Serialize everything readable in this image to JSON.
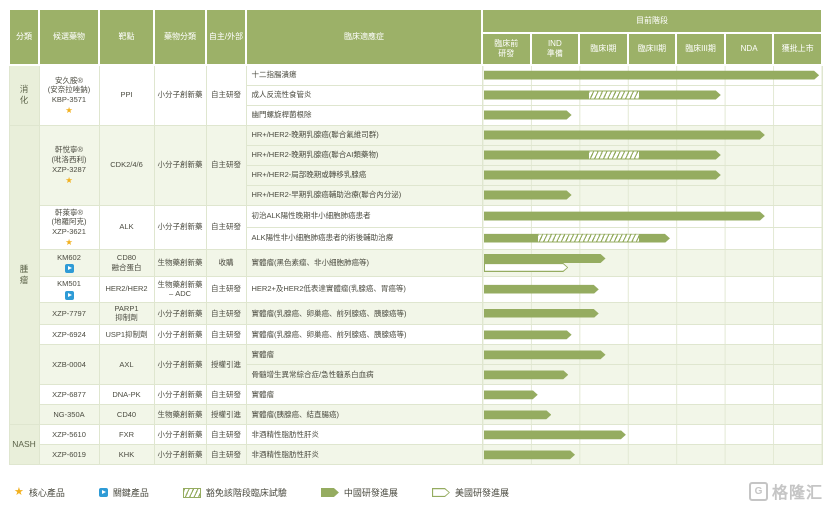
{
  "header": {
    "category": "分類",
    "candidate": "候選藥物",
    "target": "靶點",
    "drug_class": "藥物分類",
    "source": "自主/外部",
    "indication": "臨床適應症",
    "stage_group": "目前階段"
  },
  "colors": {
    "header_green": "#9cb168",
    "bar_green": "#95ac60",
    "row_tint": "#f2f6e8",
    "category_bg": "#e9efda",
    "border": "#dfe6cf",
    "grid_line": "#e3e9d4",
    "star_gold": "#f2b01e",
    "key_blue": "#2e9bd6",
    "text": "#4b4b40",
    "watermark_gray": "#c5c5c5"
  },
  "chart_data": {
    "type": "gantt",
    "title": "目前階段",
    "stages": [
      "臨床前\n研發",
      "IND\n準備",
      "臨床I期",
      "臨床II期",
      "臨床III期",
      "NDA",
      "獲批上市"
    ],
    "axis_note": "segment 'to' values are percent of stage axis width (0-100, 7 equal stage columns)",
    "categories": [
      {
        "label": "消\n化",
        "drugs": [
          {
            "name_lines": [
              "安久胺®",
              "(安奈拉唑鈉)",
              "KBP-3571"
            ],
            "marker": "star",
            "target": "PPI",
            "drug_class": "小分子創新藥",
            "source": "自主研發",
            "indications": [
              {
                "text": "十二指腸潰瘍",
                "segments": [
                  {
                    "type": "solid",
                    "to": 99
                  }
                ]
              },
              {
                "text": "成人反流性食管炎",
                "segments": [
                  {
                    "type": "solid",
                    "to": 31
                  },
                  {
                    "type": "hatch",
                    "to": 46
                  },
                  {
                    "type": "solid",
                    "to": 70
                  }
                ]
              },
              {
                "text": "幽門螺旋桿菌根除",
                "segments": [
                  {
                    "type": "solid",
                    "to": 26
                  }
                ]
              }
            ]
          }
        ]
      },
      {
        "label": "腫\n瘤",
        "drugs": [
          {
            "name_lines": [
              "軒悅寧®",
              "(吡洛西利)",
              "XZP-3287"
            ],
            "marker": "star",
            "target": "CDK2/4/6",
            "drug_class": "小分子創新藥",
            "source": "自主研發",
            "indications": [
              {
                "text": "HR+/HER2-晚期乳腺癌(聯合氟維司群)",
                "segments": [
                  {
                    "type": "solid",
                    "to": 83
                  }
                ]
              },
              {
                "text": "HR+/HER2-晚期乳腺癌(聯合AI類藥物)",
                "segments": [
                  {
                    "type": "solid",
                    "to": 31
                  },
                  {
                    "type": "hatch",
                    "to": 46
                  },
                  {
                    "type": "solid",
                    "to": 70
                  }
                ]
              },
              {
                "text": "HR+/HER2-局部晚期或轉移乳腺癌",
                "segments": [
                  {
                    "type": "solid",
                    "to": 70
                  }
                ]
              },
              {
                "text": "HR+/HER2-早期乳腺癌輔助治療(聯合內分泌)",
                "segments": [
                  {
                    "type": "solid",
                    "to": 26
                  }
                ]
              }
            ]
          },
          {
            "name_lines": [
              "軒萊寧®",
              "(地羅阿克)",
              "XZP-3621"
            ],
            "marker": "star",
            "target": "ALK",
            "drug_class": "小分子創新藥",
            "source": "自主研發",
            "indications": [
              {
                "text": "初治ALK陽性晚期非小細胞肺癌患者",
                "segments": [
                  {
                    "type": "solid",
                    "to": 83
                  }
                ]
              },
              {
                "text": "ALK陽性非小細胞肺癌患者的術後輔助治療",
                "segments": [
                  {
                    "type": "solid",
                    "to": 16
                  },
                  {
                    "type": "hatch",
                    "to": 46
                  },
                  {
                    "type": "solid",
                    "to": 55
                  }
                ]
              }
            ]
          },
          {
            "name_lines": [
              "KM602"
            ],
            "marker": "key",
            "target": "CD80\n融合蛋白",
            "drug_class": "生物藥創新藥",
            "source": "收購",
            "indications": [
              {
                "text": "實體瘤(黑色素瘤、非小細胞肺癌等)",
                "segments": [
                  {
                    "type": "solid",
                    "to": 36
                  }
                ],
                "us_to": 25
              }
            ]
          },
          {
            "name_lines": [
              "KM501"
            ],
            "marker": "key",
            "target": "HER2/HER2",
            "drug_class": "生物藥創新藥\n– ADC",
            "source": "自主研發",
            "indications": [
              {
                "text": "HER2+及HER2低表達實體瘤(乳腺癌、胃癌等)",
                "segments": [
                  {
                    "type": "solid",
                    "to": 34
                  }
                ]
              }
            ]
          },
          {
            "name_lines": [
              "XZP-7797"
            ],
            "marker": null,
            "target": "PARP1\n抑制劑",
            "drug_class": "小分子創新藥",
            "source": "自主研發",
            "indications": [
              {
                "text": "實體瘤(乳腺癌、卵巢癌、前列腺癌、胰腺癌等)",
                "segments": [
                  {
                    "type": "solid",
                    "to": 34
                  }
                ]
              }
            ]
          },
          {
            "name_lines": [
              "XZP-6924"
            ],
            "marker": null,
            "target": "USP1抑制劑",
            "drug_class": "小分子創新藥",
            "source": "自主研發",
            "indications": [
              {
                "text": "實體瘤(乳腺癌、卵巢癌、前列腺癌、胰腺癌等)",
                "segments": [
                  {
                    "type": "solid",
                    "to": 26
                  }
                ]
              }
            ]
          },
          {
            "name_lines": [
              "XZB-0004"
            ],
            "marker": null,
            "target": "AXL",
            "drug_class": "小分子創新藥",
            "source": "授權引進",
            "indications": [
              {
                "text": "實體瘤",
                "segments": [
                  {
                    "type": "solid",
                    "to": 36
                  }
                ]
              },
              {
                "text": "骨髓增生異常綜合症/急性髓系白血病",
                "segments": [
                  {
                    "type": "solid",
                    "to": 25
                  }
                ]
              }
            ]
          },
          {
            "name_lines": [
              "XZP-6877"
            ],
            "marker": null,
            "target": "DNA-PK",
            "drug_class": "小分子創新藥",
            "source": "自主研發",
            "indications": [
              {
                "text": "實體瘤",
                "segments": [
                  {
                    "type": "solid",
                    "to": 16
                  }
                ]
              }
            ]
          },
          {
            "name_lines": [
              "NG-350A"
            ],
            "marker": null,
            "target": "CD40",
            "drug_class": "生物藥創新藥",
            "source": "授權引進",
            "indications": [
              {
                "text": "實體瘤(胰腺癌、結直腸癌)",
                "segments": [
                  {
                    "type": "solid",
                    "to": 20
                  }
                ]
              }
            ]
          }
        ]
      },
      {
        "label": "NASH",
        "drugs": [
          {
            "name_lines": [
              "XZP-5610"
            ],
            "marker": null,
            "target": "FXR",
            "drug_class": "小分子創新藥",
            "source": "自主研發",
            "indications": [
              {
                "text": "非酒精性脂肪性肝炎",
                "segments": [
                  {
                    "type": "solid",
                    "to": 42
                  }
                ]
              }
            ]
          },
          {
            "name_lines": [
              "XZP-6019"
            ],
            "marker": null,
            "target": "KHK",
            "drug_class": "小分子創新藥",
            "source": "自主研發",
            "indications": [
              {
                "text": "非酒精性脂肪性肝炎",
                "segments": [
                  {
                    "type": "solid",
                    "to": 27
                  }
                ]
              }
            ]
          }
        ]
      }
    ]
  },
  "legend": {
    "items": [
      {
        "icon": "star-icon",
        "label": "核心產品"
      },
      {
        "icon": "key-product-icon",
        "label": "關鍵產品"
      },
      {
        "icon": "hatch-swatch-icon",
        "label": "豁免該階段臨床試驗"
      },
      {
        "icon": "china-progress-arrow-icon",
        "label": "中國研發進展"
      },
      {
        "icon": "us-progress-arrow-icon",
        "label": "美國研發進展"
      }
    ]
  },
  "watermark": {
    "text": "格隆汇"
  }
}
